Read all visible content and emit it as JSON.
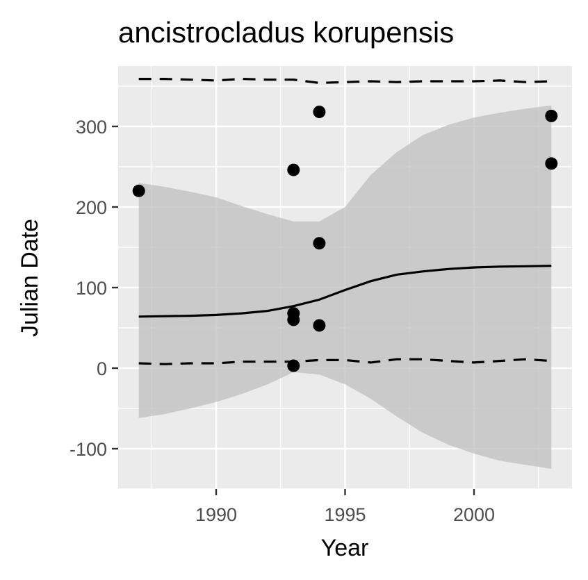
{
  "chart_data": {
    "type": "scatter",
    "title": "ancistrocladus korupensis",
    "xlabel": "Year",
    "ylabel": "Julian Date",
    "xlim": [
      1986.2,
      2003.8
    ],
    "ylim": [
      -150,
      375
    ],
    "x_ticks": [
      1990,
      1995,
      2000
    ],
    "x_tick_labels": [
      "1990",
      "1995",
      "2000"
    ],
    "y_ticks": [
      -100,
      0,
      100,
      200,
      300
    ],
    "y_tick_labels": [
      "-100",
      "0",
      "100",
      "200",
      "300"
    ],
    "grid": true,
    "legend": "none",
    "colors": {
      "panel": "#ebebeb",
      "grid": "#ffffff",
      "ribbon": "#bdbdbd",
      "points": "#000000",
      "lines": "#000000"
    },
    "points": [
      {
        "x": 1987,
        "y": 220
      },
      {
        "x": 1993,
        "y": 246
      },
      {
        "x": 1993,
        "y": 68
      },
      {
        "x": 1993,
        "y": 60
      },
      {
        "x": 1993,
        "y": 3
      },
      {
        "x": 1994,
        "y": 318
      },
      {
        "x": 1994,
        "y": 155
      },
      {
        "x": 1994,
        "y": 53
      },
      {
        "x": 2003,
        "y": 313
      },
      {
        "x": 2003,
        "y": 254
      }
    ],
    "fit_line": {
      "x": [
        1987,
        1989,
        1990,
        1991,
        1992,
        1993,
        1994,
        1995,
        1996,
        1997,
        1998,
        1999,
        2000,
        2001,
        2002,
        2003
      ],
      "y": [
        64,
        65,
        66,
        68,
        71,
        77,
        85,
        97,
        108,
        116,
        120,
        123,
        125,
        126,
        126.5,
        127
      ]
    },
    "ribbon": {
      "x": [
        1987,
        1988,
        1989,
        1990,
        1991,
        1992,
        1993,
        1994,
        1995,
        1996,
        1997,
        1998,
        1999,
        2000,
        2001,
        2002,
        2003
      ],
      "upper": [
        230,
        225,
        219,
        212,
        201,
        191,
        182,
        182,
        200,
        240,
        268,
        289,
        302,
        311,
        317,
        322,
        326
      ],
      "lower": [
        -62,
        -57,
        -50,
        -42,
        -32,
        -20,
        -5,
        -8,
        -20,
        -38,
        -60,
        -80,
        -95,
        -106,
        -115,
        -120,
        -125
      ]
    },
    "upper_dashed": {
      "x": [
        1987,
        1988,
        1989,
        1990,
        1991,
        1992,
        1993,
        1994,
        1995,
        1996,
        1997,
        1998,
        1999,
        2000,
        2001,
        2002,
        2003
      ],
      "y": [
        359,
        359,
        358,
        357,
        359,
        358,
        358,
        354,
        355,
        356,
        355,
        356,
        356,
        356,
        357,
        355,
        356
      ]
    },
    "lower_dashed": {
      "x": [
        1987,
        1988,
        1989,
        1990,
        1991,
        1992,
        1993,
        1994,
        1995,
        1996,
        1997,
        1998,
        1999,
        2000,
        2001,
        2002,
        2003
      ],
      "y": [
        6,
        5,
        6,
        6,
        8,
        8,
        8,
        10,
        10,
        7,
        11,
        11,
        9,
        7,
        9,
        11,
        9
      ]
    }
  }
}
